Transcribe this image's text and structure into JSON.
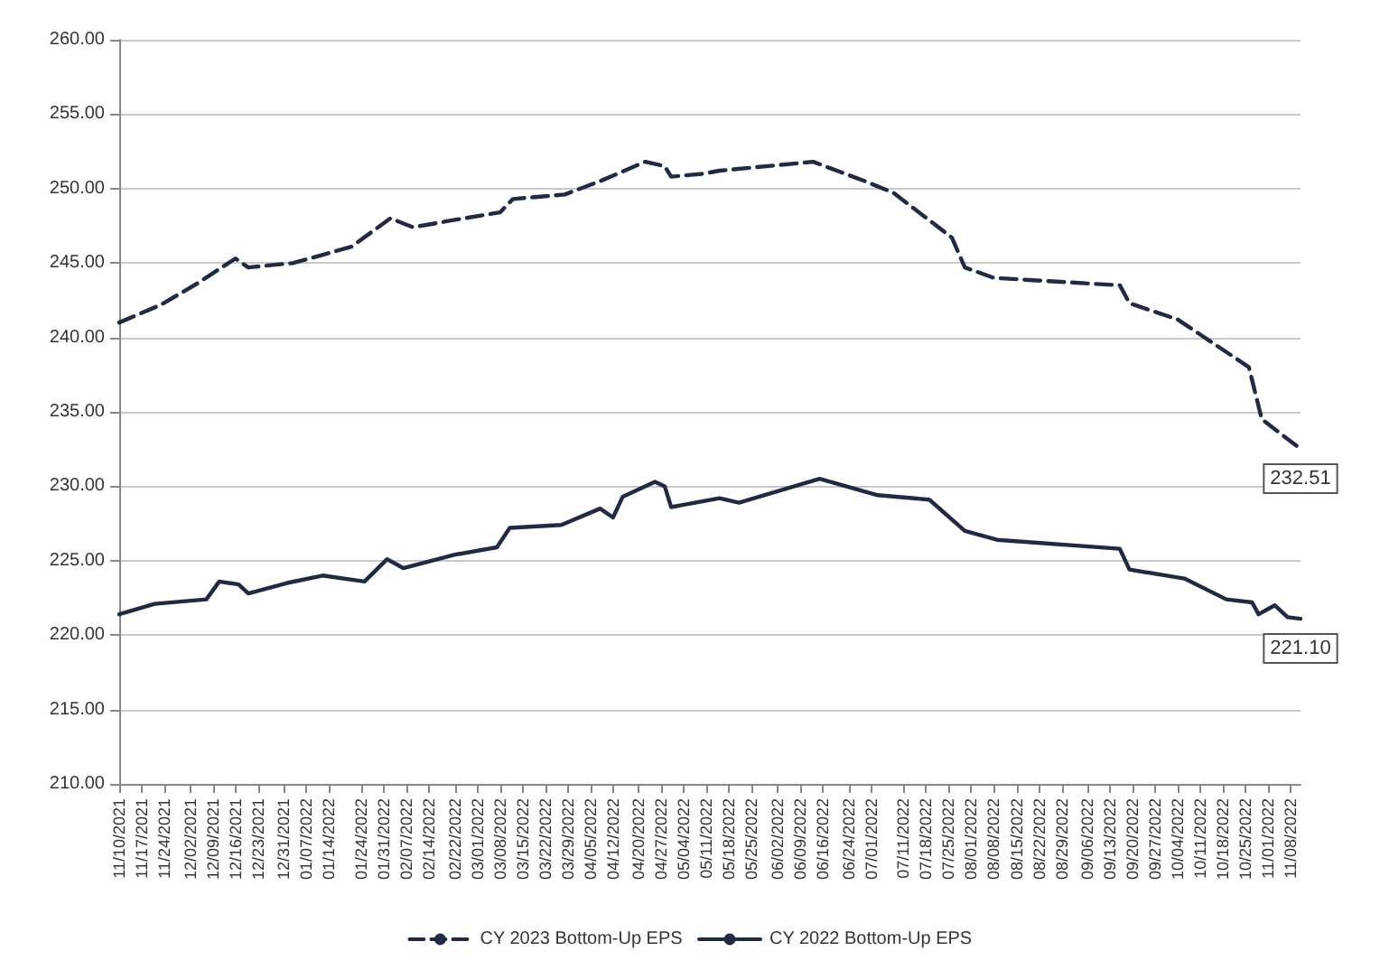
{
  "chart_data": {
    "type": "line",
    "xlim": [
      "2021-11-10",
      "2022-11-11"
    ],
    "xticks": [
      {
        "value": "2021-11-10",
        "label": "11/10/2021"
      },
      {
        "value": "2021-11-17",
        "label": "11/17/2021"
      },
      {
        "value": "2021-11-24",
        "label": "11/24/2021"
      },
      {
        "value": "2021-12-02",
        "label": "12/02/2021"
      },
      {
        "value": "2021-12-09",
        "label": "12/09/2021"
      },
      {
        "value": "2021-12-16",
        "label": "12/16/2021"
      },
      {
        "value": "2021-12-23",
        "label": "12/23/2021"
      },
      {
        "value": "2021-12-31",
        "label": "12/31/2021"
      },
      {
        "value": "2022-01-07",
        "label": "01/07/2022"
      },
      {
        "value": "2022-01-14",
        "label": "01/14/2022"
      },
      {
        "value": "2022-01-24",
        "label": "01/24/2022"
      },
      {
        "value": "2022-01-31",
        "label": "01/31/2022"
      },
      {
        "value": "2022-02-07",
        "label": "02/07/2022"
      },
      {
        "value": "2022-02-14",
        "label": "02/14/2022"
      },
      {
        "value": "2022-02-22",
        "label": "02/22/2022"
      },
      {
        "value": "2022-03-01",
        "label": "03/01/2022"
      },
      {
        "value": "2022-03-08",
        "label": "03/08/2022"
      },
      {
        "value": "2022-03-15",
        "label": "03/15/2022"
      },
      {
        "value": "2022-03-22",
        "label": "03/22/2022"
      },
      {
        "value": "2022-03-29",
        "label": "03/29/2022"
      },
      {
        "value": "2022-04-05",
        "label": "04/05/2022"
      },
      {
        "value": "2022-04-12",
        "label": "04/12/2022"
      },
      {
        "value": "2022-04-20",
        "label": "04/20/2022"
      },
      {
        "value": "2022-04-27",
        "label": "04/27/2022"
      },
      {
        "value": "2022-05-04",
        "label": "05/04/2022"
      },
      {
        "value": "2022-05-11",
        "label": "05/11/2022"
      },
      {
        "value": "2022-05-18",
        "label": "05/18/2022"
      },
      {
        "value": "2022-05-25",
        "label": "05/25/2022"
      },
      {
        "value": "2022-06-02",
        "label": "06/02/2022"
      },
      {
        "value": "2022-06-09",
        "label": "06/09/2022"
      },
      {
        "value": "2022-06-16",
        "label": "06/16/2022"
      },
      {
        "value": "2022-06-24",
        "label": "06/24/2022"
      },
      {
        "value": "2022-07-01",
        "label": "07/01/2022"
      },
      {
        "value": "2022-07-11",
        "label": "07/11/2022"
      },
      {
        "value": "2022-07-18",
        "label": "07/18/2022"
      },
      {
        "value": "2022-07-25",
        "label": "07/25/2022"
      },
      {
        "value": "2022-08-01",
        "label": "08/01/2022"
      },
      {
        "value": "2022-08-08",
        "label": "08/08/2022"
      },
      {
        "value": "2022-08-15",
        "label": "08/15/2022"
      },
      {
        "value": "2022-08-22",
        "label": "08/22/2022"
      },
      {
        "value": "2022-08-29",
        "label": "08/29/2022"
      },
      {
        "value": "2022-09-06",
        "label": "09/06/2022"
      },
      {
        "value": "2022-09-13",
        "label": "09/13/2022"
      },
      {
        "value": "2022-09-20",
        "label": "09/20/2022"
      },
      {
        "value": "2022-09-27",
        "label": "09/27/2022"
      },
      {
        "value": "2022-10-04",
        "label": "10/04/2022"
      },
      {
        "value": "2022-10-11",
        "label": "10/11/2022"
      },
      {
        "value": "2022-10-18",
        "label": "10/18/2022"
      },
      {
        "value": "2022-10-25",
        "label": "10/25/2022"
      },
      {
        "value": "2022-11-01",
        "label": "11/01/2022"
      },
      {
        "value": "2022-11-08",
        "label": "11/08/2022"
      }
    ],
    "ylim": [
      210,
      260
    ],
    "yticks": [
      {
        "value": 210,
        "label": "210.00"
      },
      {
        "value": 215,
        "label": "215.00"
      },
      {
        "value": 220,
        "label": "220.00"
      },
      {
        "value": 225,
        "label": "225.00"
      },
      {
        "value": 230,
        "label": "230.00"
      },
      {
        "value": 235,
        "label": "235.00"
      },
      {
        "value": 240,
        "label": "240.00"
      },
      {
        "value": 245,
        "label": "245.00"
      },
      {
        "value": 250,
        "label": "250.00"
      },
      {
        "value": 255,
        "label": "255.00"
      },
      {
        "value": 260,
        "label": "260.00"
      }
    ],
    "grid": "y",
    "legend": "bottom",
    "marker": "none",
    "series": [
      {
        "name": "CY 2023 Bottom-Up EPS",
        "color": "#1f2a44",
        "line_style": "dashed",
        "x": [
          "2021-11-10",
          "2021-11-23",
          "2021-12-04",
          "2021-12-16",
          "2021-12-20",
          "2022-01-03",
          "2022-01-21",
          "2022-02-02",
          "2022-02-09",
          "2022-02-22",
          "2022-03-08",
          "2022-03-12",
          "2022-03-28",
          "2022-04-08",
          "2022-04-22",
          "2022-04-28",
          "2022-04-30",
          "2022-05-10",
          "2022-05-15",
          "2022-06-13",
          "2022-06-29",
          "2022-07-08",
          "2022-07-26",
          "2022-07-30",
          "2022-08-08",
          "2022-09-16",
          "2022-09-19",
          "2022-10-04",
          "2022-10-26",
          "2022-10-30",
          "2022-11-11"
        ],
        "values": [
          241.0,
          242.2,
          243.6,
          245.3,
          244.7,
          245.0,
          246.1,
          248.0,
          247.4,
          247.9,
          248.4,
          249.3,
          249.6,
          250.5,
          251.8,
          251.5,
          250.8,
          251.0,
          251.2,
          251.8,
          250.5,
          249.7,
          246.7,
          244.7,
          244.0,
          243.5,
          242.3,
          241.2,
          238.0,
          234.5,
          232.51
        ]
      },
      {
        "name": "CY 2022 Bottom-Up EPS",
        "color": "#1f2a44",
        "line_style": "solid",
        "x": [
          "2021-11-10",
          "2021-11-21",
          "2021-12-07",
          "2021-12-11",
          "2021-12-17",
          "2021-12-20",
          "2022-01-01",
          "2022-01-12",
          "2022-01-25",
          "2022-02-01",
          "2022-02-06",
          "2022-02-22",
          "2022-03-07",
          "2022-03-11",
          "2022-03-27",
          "2022-04-08",
          "2022-04-12",
          "2022-04-15",
          "2022-04-25",
          "2022-04-28",
          "2022-04-30",
          "2022-05-15",
          "2022-05-21",
          "2022-06-15",
          "2022-07-03",
          "2022-07-19",
          "2022-07-30",
          "2022-08-09",
          "2022-09-16",
          "2022-09-19",
          "2022-10-06",
          "2022-10-19",
          "2022-10-27",
          "2022-10-29",
          "2022-11-03",
          "2022-11-07",
          "2022-11-11"
        ],
        "values": [
          221.4,
          222.1,
          222.4,
          223.6,
          223.4,
          222.8,
          223.5,
          224.0,
          223.6,
          225.1,
          224.5,
          225.4,
          225.9,
          227.2,
          227.4,
          228.5,
          227.9,
          229.3,
          230.3,
          230.0,
          228.6,
          229.2,
          228.9,
          230.5,
          229.4,
          229.1,
          227.0,
          226.4,
          225.8,
          224.4,
          223.8,
          222.4,
          222.2,
          221.4,
          222.0,
          221.2,
          221.1
        ]
      }
    ],
    "annotations": [
      {
        "text": "232.51",
        "x": "2022-11-11",
        "y": 232.51
      },
      {
        "text": "221.10",
        "x": "2022-11-11",
        "y": 221.1
      }
    ]
  }
}
